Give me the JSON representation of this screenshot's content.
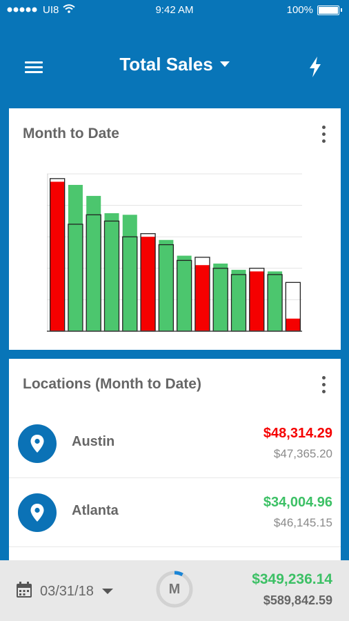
{
  "status_bar": {
    "carrier": "UI8",
    "time": "9:42 AM",
    "battery": "100%"
  },
  "header": {
    "title": "Total Sales"
  },
  "chart_card": {
    "title": "Month to Date"
  },
  "chart_data": {
    "type": "bar",
    "bars": [
      {
        "value": 95,
        "outline": 97,
        "status": "red"
      },
      {
        "value": 93,
        "outline": 68,
        "status": "green"
      },
      {
        "value": 86,
        "outline": 74,
        "status": "green"
      },
      {
        "value": 75,
        "outline": 70,
        "status": "green"
      },
      {
        "value": 74,
        "outline": 60,
        "status": "green"
      },
      {
        "value": 60,
        "outline": 62,
        "status": "red"
      },
      {
        "value": 58,
        "outline": 55,
        "status": "green"
      },
      {
        "value": 48,
        "outline": 45,
        "status": "green"
      },
      {
        "value": 42,
        "outline": 47,
        "status": "red"
      },
      {
        "value": 43,
        "outline": 40,
        "status": "green"
      },
      {
        "value": 39,
        "outline": 36,
        "status": "green"
      },
      {
        "value": 38,
        "outline": 40,
        "status": "red"
      },
      {
        "value": 38,
        "outline": 36,
        "status": "green"
      },
      {
        "value": 8,
        "outline": 31,
        "status": "red"
      }
    ],
    "ylim": [
      0,
      100
    ],
    "grid": true,
    "colors": {
      "green": "#4cc66e",
      "red": "#f50000",
      "outline": "#222222",
      "grid": "#e3e3e3"
    }
  },
  "locations_card": {
    "title": "Locations (Month to Date)",
    "items": [
      {
        "name": "Austin",
        "primary": "$48,314.29",
        "secondary": "$47,365.20",
        "status_color": "#f50000"
      },
      {
        "name": "Atlanta",
        "primary": "$34,004.96",
        "secondary": "$46,145.15",
        "status_color": "#3cc065"
      }
    ]
  },
  "bottom_bar": {
    "date": "03/31/18",
    "period": "M",
    "period_progress": 0.08,
    "total_primary": "$349,236.14",
    "total_secondary": "$589,842.59",
    "total_color": "#3cc065"
  },
  "icons": {
    "menu": "menu-icon",
    "bolt": "lightning-bolt-icon",
    "more": "more-vertical-icon",
    "location": "location-pin-icon",
    "calendar": "calendar-icon",
    "caret": "caret-down-icon"
  },
  "theme": {
    "primary": "#0875b8"
  }
}
